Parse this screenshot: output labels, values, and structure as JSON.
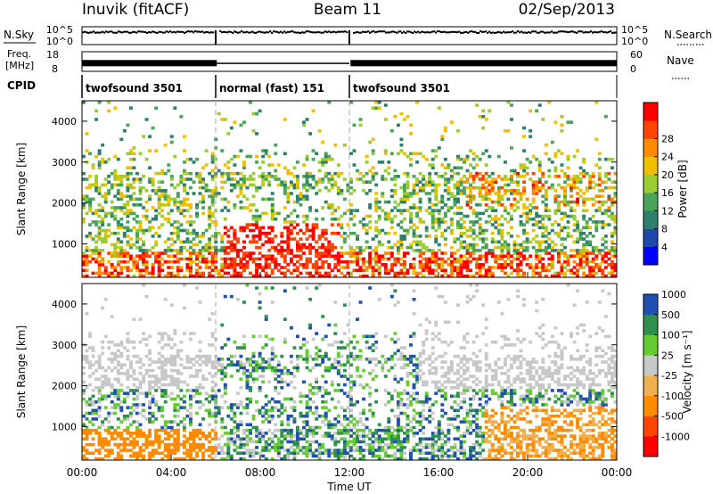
{
  "chart_data": {
    "type": "heatmap",
    "header": {
      "station": "Inuvik (fitACF)",
      "beam": "Beam 11",
      "date": "02/Sep/2013"
    },
    "strips": {
      "nsky": {
        "label": "N.Sky",
        "left_ticks": [
          "10^5",
          "10^0"
        ],
        "right_label": "N.Search",
        "right_ticks": [
          "10^5",
          "10^0"
        ],
        "level_fraction": 0.75
      },
      "freq": {
        "label_line1": "Freq.",
        "label_line2": "[MHz]",
        "left_ticks": [
          "18",
          "8"
        ],
        "right_label": "Nave",
        "right_ticks": [
          "60",
          "0"
        ],
        "level_fraction": 0.35
      },
      "cpid": {
        "label": "CPID",
        "segments": [
          {
            "name": "twofsound 3501",
            "start_hour": 0,
            "end_hour": 6
          },
          {
            "name": "normal (fast) 151",
            "start_hour": 6,
            "end_hour": 12
          },
          {
            "name": "twofsound 3501",
            "start_hour": 12,
            "end_hour": 24
          }
        ]
      }
    },
    "panels": [
      {
        "name": "power",
        "ylabel": "Slant Range [km]",
        "yticks": [
          1000,
          2000,
          3000,
          4000
        ],
        "ylim": [
          180,
          4500
        ],
        "colorbar_label": "Power [dB]",
        "colorbar_colors": [
          "#0000ff",
          "#1f49a8",
          "#2f7f6f",
          "#4aa45a",
          "#9acd32",
          "#f0c000",
          "#ff8c00",
          "#ff4500",
          "#ff0000"
        ],
        "colorbar_ticks": [
          "4",
          "8",
          "12",
          "16",
          "20",
          "24",
          "28"
        ]
      },
      {
        "name": "velocity",
        "ylabel": "Slant Range [km]",
        "yticks": [
          1000,
          2000,
          3000,
          4000
        ],
        "ylim": [
          180,
          4500
        ],
        "colorbar_label": "Velocity [m s⁻¹]",
        "colorbar_colors": [
          "#ff0000",
          "#ff4500",
          "#ff8c00",
          "#f0b050",
          "#c8c8c8",
          "#66cc33",
          "#2f8f4f",
          "#2050b0"
        ],
        "colorbar_ticks": [
          "-1000",
          "-500",
          "-100",
          "-25",
          "25",
          "100",
          "500",
          "1000"
        ]
      }
    ],
    "x_axis": {
      "label": "Time UT",
      "xlim": [
        0,
        24
      ],
      "ticks": [
        "00:00",
        "04:00",
        "08:00",
        "12:00",
        "16:00",
        "20:00",
        "00:00"
      ]
    },
    "mode_boundaries_hours": [
      6,
      12
    ]
  }
}
